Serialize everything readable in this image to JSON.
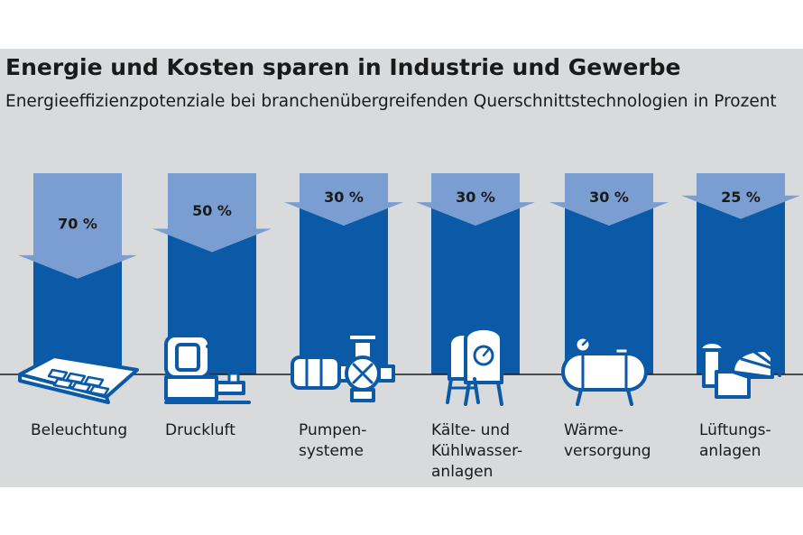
{
  "title": "Energie und Kosten sparen in Industrie und Gewerbe",
  "subtitle": "Energieeffizienzpotenziale bei branchenübergreifenden Querschnittstechnologien in Prozent",
  "colors": {
    "background": "#d9dadb",
    "bar": "#0b5aa7",
    "arrow": "#7b9ed2",
    "icon": "#0b5aa7",
    "text": "#1a1a1a"
  },
  "chart_data": {
    "type": "bar",
    "title": "Energie und Kosten sparen in Industrie und Gewerbe",
    "subtitle": "Energieeffizienzpotenziale bei branchenübergreifenden Querschnittstechnologien in Prozent",
    "unit": "%",
    "categories": [
      "Beleuchtung",
      "Druckluft",
      "Pumpensysteme",
      "Kälte- und Kühlwasseranlagen",
      "Wärmeversorgung",
      "Lüftungsanlagen"
    ],
    "category_labels": [
      "Beleuchtung",
      "Druckluft",
      "Pumpen-\nsysteme",
      "Kälte- und\nKühlwasser-\nanlagen",
      "Wärme-\nversorgung",
      "Lüftungs-\nanlagen"
    ],
    "values": [
      70,
      50,
      30,
      30,
      30,
      25
    ],
    "value_labels": [
      "70 %",
      "50 %",
      "30 %",
      "30 %",
      "30 %",
      "25 %"
    ],
    "icons": [
      "lamp-icon",
      "compressor-icon",
      "pump-icon",
      "chiller-icon",
      "boiler-icon",
      "ventilation-icon"
    ],
    "ylim": [
      0,
      100
    ],
    "grid": false,
    "legend": "none"
  }
}
